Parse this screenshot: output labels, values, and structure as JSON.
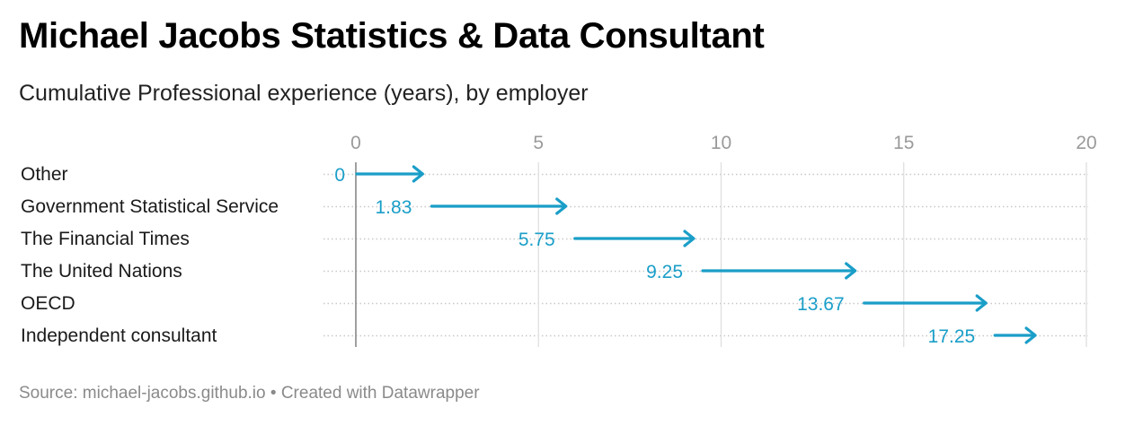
{
  "title": "Michael Jacobs Statistics & Data Consultant",
  "subtitle": "Cumulative Professional experience (years), by employer",
  "footer": {
    "source_label": "Source:",
    "source": "michael-jacobs.github.io",
    "separator": "•",
    "created_with": "Created with Datawrapper"
  },
  "chart_data": {
    "type": "range-arrow",
    "title": "Michael Jacobs Statistics & Data Consultant",
    "subtitle": "Cumulative Professional experience (years), by employer",
    "categories": [
      "Other",
      "Government Statistical Service",
      "The Financial Times",
      "The United Nations",
      "OECD",
      "Independent consultant"
    ],
    "start": [
      0,
      1.83,
      5.75,
      9.25,
      13.67,
      17.25
    ],
    "end": [
      1.83,
      5.75,
      9.25,
      13.67,
      17.25,
      18.6
    ],
    "start_labels": [
      "0",
      "1.83",
      "5.75",
      "9.25",
      "13.67",
      "17.25"
    ],
    "x_ticks": [
      0,
      5,
      10,
      15,
      20
    ],
    "xlim": [
      0,
      20
    ],
    "xaxis_position": "top",
    "grid": {
      "vertical": true,
      "horizontal_dotted": true
    },
    "arrow_color": "#1a9ec8",
    "label_color": "#1a9ec8",
    "grid_color": "#dddddd",
    "baseline_color": "#888888"
  }
}
